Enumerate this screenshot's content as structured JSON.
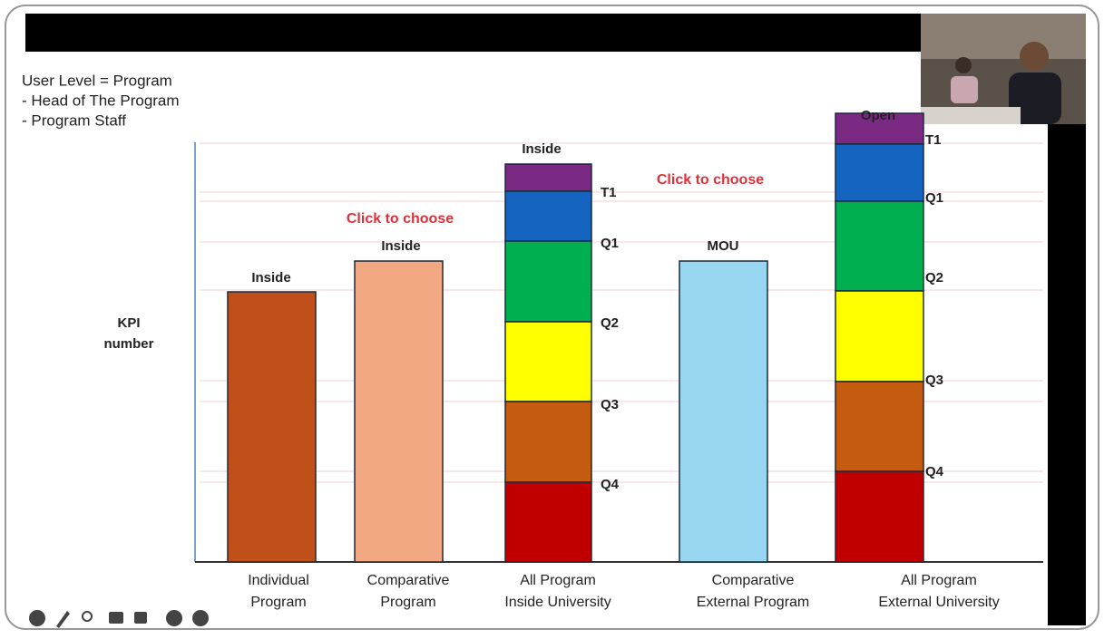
{
  "slide": {
    "user_level": [
      "User Level = Program",
      "- Head of The Program",
      "- Program Staff"
    ],
    "y_label": [
      "KPI",
      "number"
    ],
    "columns": [
      {
        "top_label": "Inside",
        "label": [
          "Individual",
          "Program"
        ]
      },
      {
        "top_label": "Inside",
        "label": [
          "Comparative",
          "Program"
        ]
      },
      {
        "top_label": "Inside",
        "label": [
          "All Program",
          "Inside University"
        ]
      },
      {
        "top_label": "MOU",
        "label": [
          "Comparative",
          "External Program"
        ]
      },
      {
        "top_label": "Open",
        "label": [
          "All Program",
          "External University"
        ]
      }
    ],
    "annotations": [
      "Click to choose",
      "Click to choose"
    ],
    "inside_segments": [
      "T1",
      "Q1",
      "Q2",
      "Q3",
      "Q4"
    ],
    "external_segments": [
      "T1",
      "Q1",
      "Q2",
      "Q3",
      "Q4"
    ]
  }
}
